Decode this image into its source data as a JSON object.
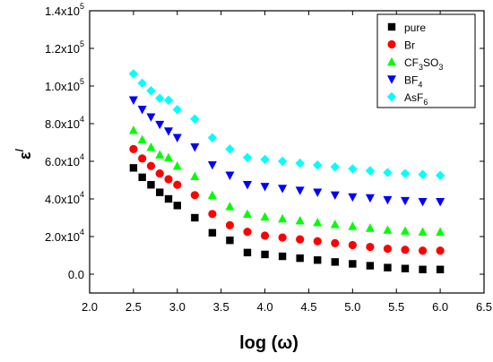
{
  "chart_data": {
    "type": "scatter",
    "xlabel": "log (ω)",
    "ylabel": "ε",
    "ylabel_superscript": "/",
    "xlim": [
      2.0,
      6.5
    ],
    "ylim": [
      -10000,
      140000
    ],
    "x_ticks": [
      {
        "value": 2.0,
        "label": "2.0"
      },
      {
        "value": 2.5,
        "label": "2.5"
      },
      {
        "value": 3.0,
        "label": "3.0"
      },
      {
        "value": 3.5,
        "label": "3.5"
      },
      {
        "value": 4.0,
        "label": "4.0"
      },
      {
        "value": 4.5,
        "label": "4.5"
      },
      {
        "value": 5.0,
        "label": "5.0"
      },
      {
        "value": 5.5,
        "label": "5.5"
      },
      {
        "value": 6.0,
        "label": "6.0"
      },
      {
        "value": 6.5,
        "label": "6.5"
      }
    ],
    "y_ticks": [
      {
        "value": 0,
        "label": "0.0",
        "mantissa": "0.0",
        "exp": ""
      },
      {
        "value": 20000,
        "label": "2.0x10^4",
        "mantissa": "2.0x10",
        "exp": "4"
      },
      {
        "value": 40000,
        "label": "4.0x10^4",
        "mantissa": "4.0x10",
        "exp": "4"
      },
      {
        "value": 60000,
        "label": "6.0x10^4",
        "mantissa": "6.0x10",
        "exp": "4"
      },
      {
        "value": 80000,
        "label": "8.0x10^4",
        "mantissa": "8.0x10",
        "exp": "4"
      },
      {
        "value": 100000,
        "label": "1.0x10^5",
        "mantissa": "1.0x10",
        "exp": "5"
      },
      {
        "value": 120000,
        "label": "1.2x10^5",
        "mantissa": "1.2x10",
        "exp": "5"
      },
      {
        "value": 140000,
        "label": "1.4x10^5",
        "mantissa": "1.4x10",
        "exp": "5"
      }
    ],
    "x": [
      2.5,
      2.6,
      2.7,
      2.8,
      2.9,
      3.0,
      3.2,
      3.4,
      3.6,
      3.8,
      4.0,
      4.2,
      4.4,
      4.6,
      4.8,
      5.0,
      5.2,
      5.4,
      5.6,
      5.8,
      6.0
    ],
    "series": [
      {
        "name": "pure",
        "name_sub": "",
        "name_tail": "",
        "marker": "square",
        "color": "#000000",
        "values": [
          56500,
          51500,
          47500,
          43500,
          40000,
          36500,
          30000,
          22000,
          18000,
          11500,
          10500,
          9500,
          8500,
          7500,
          6500,
          5500,
          4500,
          3500,
          3000,
          2500,
          2500
        ]
      },
      {
        "name": "Br",
        "name_sub": "",
        "name_tail": "",
        "marker": "circle",
        "color": "#ff0000",
        "values": [
          66500,
          61500,
          57500,
          53500,
          50500,
          47500,
          42000,
          32000,
          26000,
          22500,
          20500,
          19500,
          18500,
          17500,
          16500,
          15500,
          14500,
          13500,
          13000,
          12500,
          12500
        ]
      },
      {
        "name": "CF",
        "name_sub": "3",
        "name_tail": "SO",
        "name_sub2": "3",
        "marker": "triangle-up",
        "color": "#00ff00",
        "values": [
          76500,
          71500,
          67500,
          63500,
          62000,
          57500,
          52000,
          42000,
          36000,
          32000,
          30500,
          29500,
          28500,
          27500,
          26500,
          25500,
          24500,
          23500,
          23000,
          22500,
          22500
        ]
      },
      {
        "name": "BF",
        "name_sub": "4",
        "name_tail": "",
        "marker": "triangle-down",
        "color": "#0000ff",
        "values": [
          92500,
          87500,
          83500,
          79500,
          76000,
          72500,
          67500,
          58000,
          52500,
          47500,
          46500,
          45500,
          44500,
          43500,
          42000,
          41000,
          40500,
          39500,
          39000,
          38500,
          38500
        ]
      },
      {
        "name": "AsF",
        "name_sub": "6",
        "name_tail": "",
        "marker": "diamond",
        "color": "#00ffff",
        "values": [
          106500,
          101500,
          97500,
          93500,
          92500,
          87500,
          82500,
          72500,
          66500,
          62000,
          61000,
          60000,
          59000,
          58000,
          57000,
          56000,
          55000,
          54000,
          53500,
          53000,
          52500
        ]
      }
    ],
    "legend_position": "top-right",
    "grid": false
  }
}
